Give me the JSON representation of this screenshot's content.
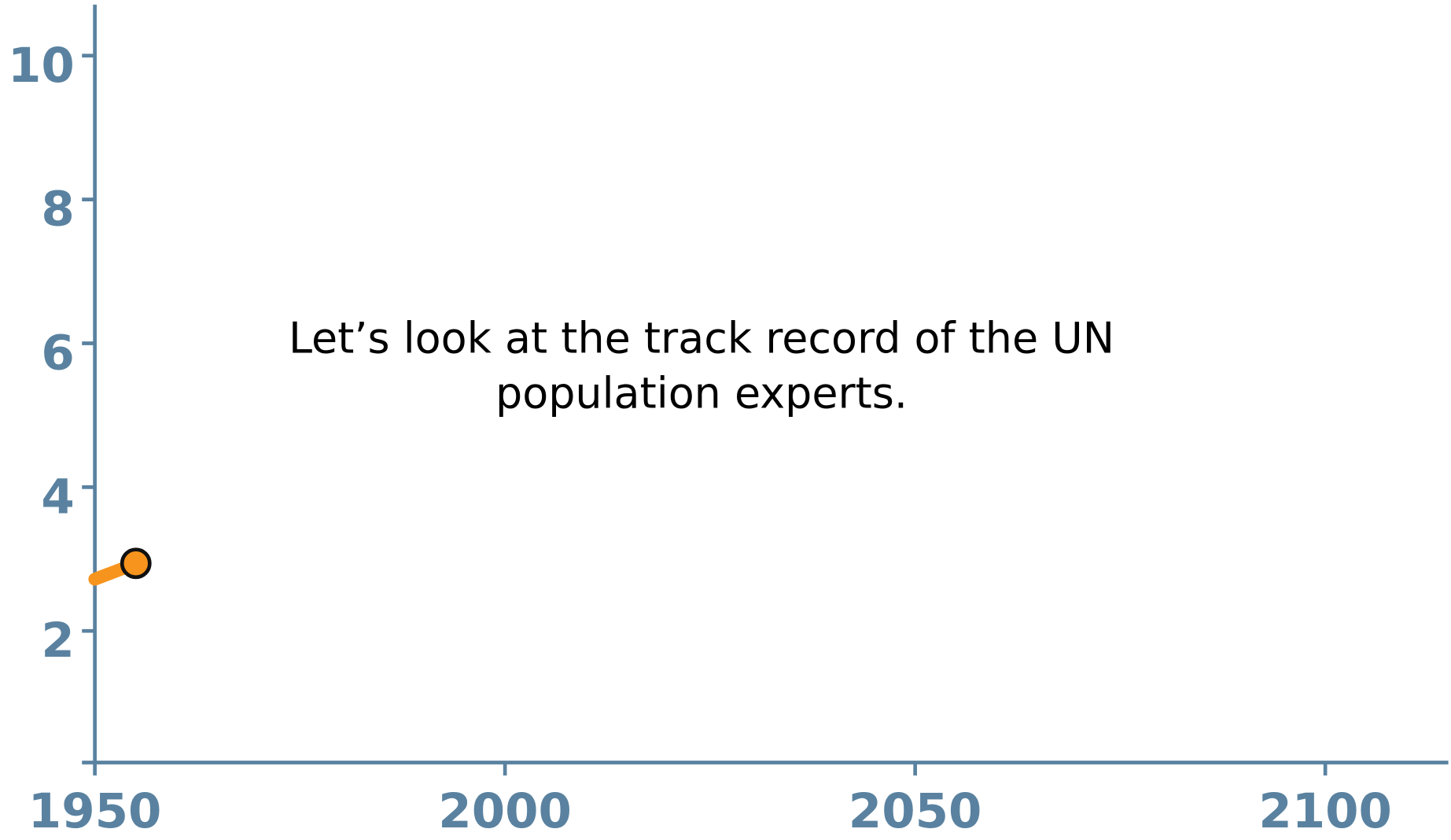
{
  "chart_data": {
    "type": "line",
    "annotation": [
      "Let’s look at the track record of the UN",
      "population experts."
    ],
    "x": [
      1950,
      1953,
      1955
    ],
    "values": [
      2.72,
      2.85,
      2.94
    ],
    "color": "#f7941d",
    "xlim": [
      1950,
      2115
    ],
    "xticks": [
      1950,
      2000,
      2050,
      2100
    ],
    "ylim": [
      0.17,
      10.71
    ],
    "yticks": [
      2,
      4,
      6,
      8,
      10
    ]
  }
}
